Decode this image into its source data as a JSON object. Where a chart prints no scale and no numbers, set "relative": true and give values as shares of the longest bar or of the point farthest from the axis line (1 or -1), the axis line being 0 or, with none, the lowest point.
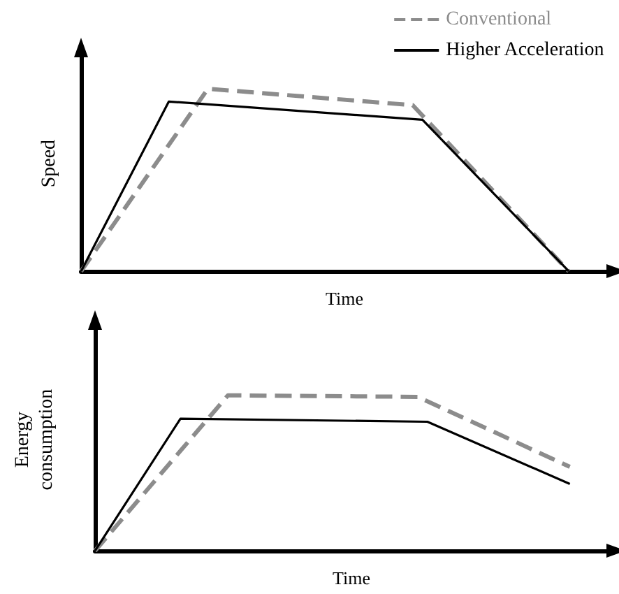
{
  "chart_data": [
    {
      "type": "line",
      "relative": true,
      "xlabel": "Time",
      "ylabel": "Speed",
      "legend": "top right",
      "marker": "none",
      "grid": false,
      "categories": [
        null,
        null,
        null,
        null,
        null,
        null,
        null,
        null,
        null,
        null,
        null,
        null,
        null,
        null,
        null,
        null,
        null,
        null,
        null,
        null,
        null,
        null,
        null,
        null,
        null,
        null,
        null,
        null,
        null,
        null,
        null,
        null,
        null,
        null,
        null,
        null,
        null,
        null,
        null,
        null,
        null,
        null,
        null,
        null,
        null,
        null,
        null,
        null,
        null,
        null,
        null,
        null,
        null,
        null,
        null
      ],
      "series": [
        {
          "name": "Conventional",
          "color": "#8c8c8c",
          "line_style": "dashed",
          "values": [
            0,
            null,
            null,
            null,
            null,
            null,
            null,
            null,
            null,
            null,
            null,
            null,
            null,
            1,
            null,
            null,
            null,
            null,
            null,
            null,
            null,
            null,
            null,
            null,
            null,
            null,
            null,
            null,
            null,
            null,
            null,
            null,
            null,
            null,
            0.91,
            null,
            null,
            null,
            null,
            null,
            null,
            null,
            null,
            null,
            null,
            null,
            null,
            null,
            null,
            null,
            0,
            null,
            null,
            null,
            null
          ]
        },
        {
          "name": "Higher Acceleration",
          "color": "#000000",
          "line_style": "solid",
          "values": [
            0,
            null,
            null,
            null,
            null,
            null,
            null,
            null,
            null,
            0.93,
            null,
            null,
            null,
            null,
            null,
            null,
            null,
            null,
            null,
            null,
            null,
            null,
            null,
            null,
            null,
            null,
            null,
            null,
            null,
            null,
            null,
            null,
            null,
            null,
            null,
            0.83,
            null,
            null,
            null,
            null,
            null,
            null,
            null,
            null,
            null,
            null,
            null,
            null,
            null,
            null,
            0,
            null,
            null,
            null,
            null
          ]
        }
      ]
    },
    {
      "type": "line",
      "relative": true,
      "xlabel": "Time",
      "ylabel": "Energy\nconsumption",
      "legend": false,
      "marker": "none",
      "grid": false,
      "categories": [
        null,
        null,
        null,
        null,
        null,
        null,
        null,
        null,
        null,
        null,
        null,
        null,
        null,
        null,
        null,
        null,
        null,
        null,
        null,
        null,
        null,
        null,
        null,
        null,
        null,
        null,
        null,
        null,
        null,
        null,
        null,
        null,
        null,
        null,
        null,
        null,
        null,
        null,
        null,
        null,
        null,
        null,
        null,
        null,
        null,
        null,
        null,
        null,
        null,
        null,
        null,
        null,
        null,
        null,
        null
      ],
      "series": [
        {
          "color": "#8c8c8c",
          "line_style": "dashed",
          "values": [
            0,
            null,
            null,
            null,
            null,
            null,
            null,
            null,
            null,
            null,
            null,
            null,
            null,
            null,
            1,
            null,
            null,
            null,
            null,
            null,
            null,
            null,
            null,
            null,
            null,
            null,
            null,
            null,
            null,
            null,
            null,
            null,
            null,
            null,
            0.99,
            null,
            null,
            null,
            null,
            null,
            null,
            null,
            null,
            null,
            null,
            null,
            null,
            null,
            null,
            null,
            0.54,
            null,
            null,
            null,
            null
          ]
        },
        {
          "color": "#000000",
          "line_style": "solid",
          "values": [
            0,
            null,
            null,
            null,
            null,
            null,
            null,
            null,
            null,
            0.85,
            null,
            null,
            null,
            null,
            null,
            null,
            null,
            null,
            null,
            null,
            null,
            null,
            null,
            null,
            null,
            null,
            null,
            null,
            null,
            null,
            null,
            null,
            null,
            null,
            null,
            0.83,
            null,
            null,
            null,
            null,
            null,
            null,
            null,
            null,
            null,
            null,
            null,
            null,
            null,
            null,
            0.43,
            null,
            null,
            null,
            null
          ]
        }
      ]
    }
  ]
}
